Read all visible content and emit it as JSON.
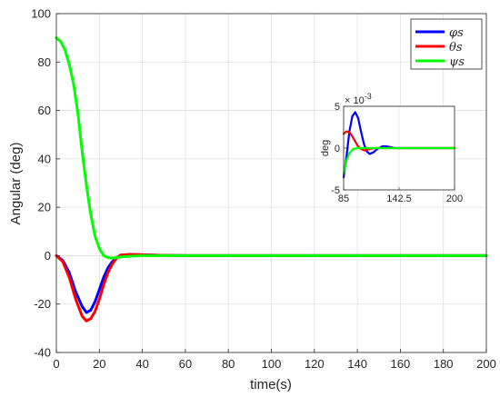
{
  "chart_data": {
    "type": "line",
    "xlabel": "time(s)",
    "ylabel": "Angular (deg)",
    "xlim": [
      0,
      200
    ],
    "ylim": [
      -40,
      100
    ],
    "xticks": [
      "0",
      "20",
      "40",
      "60",
      "80",
      "100",
      "120",
      "140",
      "160",
      "180",
      "200"
    ],
    "yticks": [
      "-40",
      "-20",
      "0",
      "20",
      "40",
      "60",
      "80",
      "100"
    ],
    "grid": true,
    "legend_placement": "top-right",
    "series": [
      {
        "name": "φs",
        "color": "#0000ff",
        "points": [
          [
            0,
            0
          ],
          [
            3,
            -2
          ],
          [
            6,
            -7
          ],
          [
            9,
            -15
          ],
          [
            12,
            -21
          ],
          [
            14,
            -23.5
          ],
          [
            16,
            -22.5
          ],
          [
            18,
            -19
          ],
          [
            20,
            -14
          ],
          [
            22,
            -9
          ],
          [
            24,
            -5
          ],
          [
            26,
            -2.5
          ],
          [
            28,
            -0.8
          ],
          [
            30,
            0.2
          ],
          [
            34,
            0.5
          ],
          [
            40,
            0.4
          ],
          [
            50,
            0.1
          ],
          [
            60,
            0
          ],
          [
            200,
            0
          ]
        ]
      },
      {
        "name": "θs",
        "color": "#ff0000",
        "points": [
          [
            0,
            0
          ],
          [
            3,
            -2.5
          ],
          [
            6,
            -9
          ],
          [
            9,
            -18
          ],
          [
            12,
            -25
          ],
          [
            14,
            -27
          ],
          [
            16,
            -26
          ],
          [
            18,
            -23
          ],
          [
            20,
            -18
          ],
          [
            22,
            -12
          ],
          [
            24,
            -7
          ],
          [
            26,
            -3.5
          ],
          [
            28,
            -1
          ],
          [
            30,
            0.3
          ],
          [
            35,
            0.5
          ],
          [
            45,
            0.2
          ],
          [
            60,
            0
          ],
          [
            200,
            0
          ]
        ]
      },
      {
        "name": "ψs",
        "color": "#00ff00",
        "points": [
          [
            0,
            90
          ],
          [
            2,
            88.5
          ],
          [
            4,
            85
          ],
          [
            6,
            79
          ],
          [
            8,
            71
          ],
          [
            10,
            59
          ],
          [
            12,
            43
          ],
          [
            14,
            29
          ],
          [
            16,
            17
          ],
          [
            18,
            8
          ],
          [
            20,
            3
          ],
          [
            22,
            0
          ],
          [
            24,
            -0.8
          ],
          [
            26,
            -1
          ],
          [
            28,
            -0.8
          ],
          [
            30,
            -0.5
          ],
          [
            35,
            -0.2
          ],
          [
            40,
            0
          ],
          [
            200,
            0
          ]
        ]
      }
    ],
    "inset": {
      "ylabel": "deg",
      "exponent_label": "× 10",
      "exponent": "-3",
      "xlim": [
        85,
        200
      ],
      "ylim": [
        -5,
        5
      ],
      "xticks": [
        "85",
        "142.5",
        "200"
      ],
      "yticks": [
        "-5",
        "0",
        "5"
      ],
      "series": [
        {
          "name": "φs",
          "color": "#0000ff",
          "points": [
            [
              85,
              -3.5
            ],
            [
              88,
              -1
            ],
            [
              91,
              2
            ],
            [
              94,
              3.8
            ],
            [
              97,
              4.3
            ],
            [
              100,
              3.6
            ],
            [
              103,
              2
            ],
            [
              106,
              0.5
            ],
            [
              109,
              -0.4
            ],
            [
              112,
              -0.7
            ],
            [
              116,
              -0.5
            ],
            [
              120,
              -0.1
            ],
            [
              125,
              0.2
            ],
            [
              130,
              0.2
            ],
            [
              138,
              0
            ],
            [
              200,
              0
            ]
          ]
        },
        {
          "name": "θs",
          "color": "#ff0000",
          "points": [
            [
              85,
              1.7
            ],
            [
              88,
              2
            ],
            [
              91,
              1.9
            ],
            [
              94,
              1.4
            ],
            [
              97,
              0.8
            ],
            [
              100,
              0.2
            ],
            [
              103,
              -0.1
            ],
            [
              107,
              -0.3
            ],
            [
              112,
              -0.1
            ],
            [
              118,
              0
            ],
            [
              200,
              0
            ]
          ]
        },
        {
          "name": "ψs",
          "color": "#00ff00",
          "points": [
            [
              85,
              -3
            ],
            [
              88,
              -1.5
            ],
            [
              91,
              -0.6
            ],
            [
              95,
              -0.1
            ],
            [
              100,
              0
            ],
            [
              200,
              0
            ]
          ]
        }
      ]
    }
  }
}
